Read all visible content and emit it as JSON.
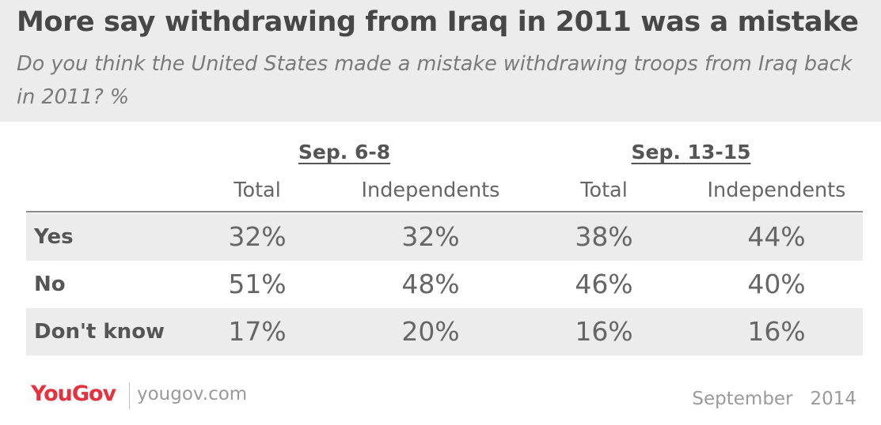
{
  "title": "More say withdrawing from Iraq in 2011 was a mistake",
  "subtitle": "Do you think the United States made a mistake withdrawing troops from Iraq back in 2011? %",
  "chart_data": {
    "type": "table",
    "groups": [
      {
        "label": "Sep. 6-8",
        "columns": [
          "Total",
          "Independents"
        ]
      },
      {
        "label": "Sep. 13-15",
        "columns": [
          "Total",
          "Independents"
        ]
      }
    ],
    "rows": [
      {
        "label": "Yes",
        "values": [
          "32%",
          "32%",
          "38%",
          "44%"
        ]
      },
      {
        "label": "No",
        "values": [
          "51%",
          "48%",
          "46%",
          "40%"
        ]
      },
      {
        "label": "Don't know",
        "values": [
          "17%",
          "20%",
          "16%",
          "16%"
        ]
      }
    ]
  },
  "footer": {
    "brand": "YouGov",
    "site": "yougov.com",
    "date": "September   2014"
  },
  "colors": {
    "brand": "#e5323f",
    "header_bg": "#ececec",
    "row_shade": "#ececec"
  }
}
